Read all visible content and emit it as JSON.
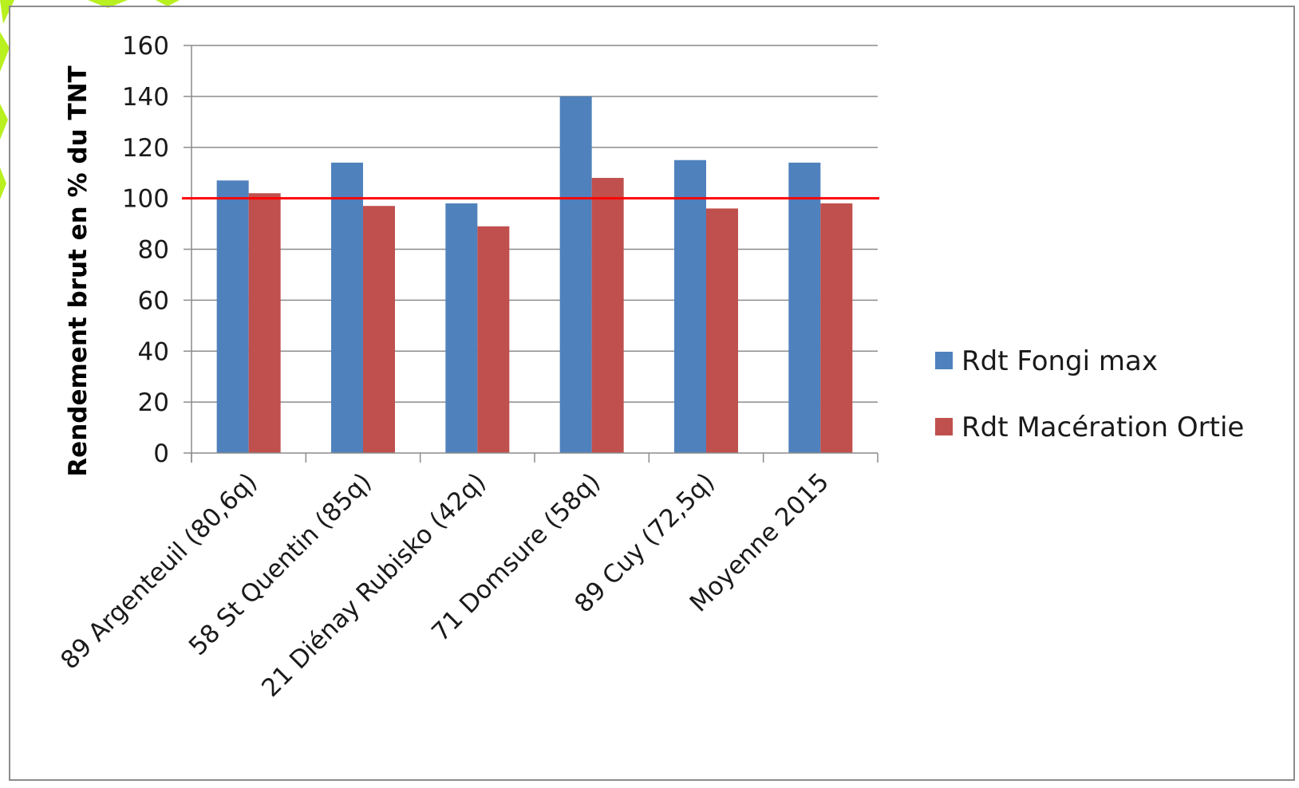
{
  "chart_data": {
    "type": "bar",
    "title": "",
    "xlabel": "",
    "ylabel": "Rendement brut en % du TNT",
    "ylim": [
      0,
      160
    ],
    "yticks": [
      0,
      20,
      40,
      60,
      80,
      100,
      120,
      140,
      160
    ],
    "grid": true,
    "legend_position": "right",
    "categories": [
      "89 Argenteuil (80,6q)",
      "58 St Quentin (85q)",
      "21 Diénay Rubisko (42q)",
      "71 Domsure (58q)",
      "89 Cuy (72,5q)",
      "Moyenne 2015"
    ],
    "series": [
      {
        "name": "Rdt Fongi max",
        "color": "#4F81BD",
        "values": [
          107,
          114,
          98,
          140,
          115,
          114
        ]
      },
      {
        "name": "Rdt Macération Ortie",
        "color": "#C0504D",
        "values": [
          102,
          97,
          89,
          108,
          96,
          98
        ]
      }
    ],
    "reference_line": {
      "value": 100,
      "color": "#FF0000"
    }
  }
}
